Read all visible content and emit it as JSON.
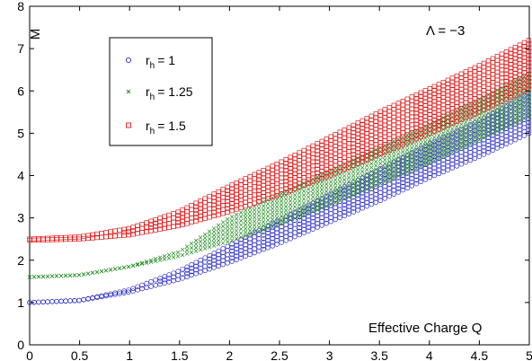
{
  "chart_data": {
    "type": "scatter",
    "title": "",
    "annotation": "Λ = −3",
    "xlabel": "Effective Charge Q",
    "ylabel": "M",
    "xlim": [
      0,
      5
    ],
    "ylim": [
      0,
      8
    ],
    "xticks": [
      "0",
      "0.5",
      "1",
      "1.5",
      "2",
      "2.5",
      "3",
      "3.5",
      "4",
      "4.5",
      "5"
    ],
    "yticks": [
      "0",
      "1",
      "2",
      "3",
      "4",
      "5",
      "6",
      "7",
      "8"
    ],
    "grid": false,
    "legend_position": "top-left",
    "series": [
      {
        "name_base": "r",
        "name_sub": "h",
        "name_value": "= 1",
        "marker": "circle",
        "color": "#2b2bc4",
        "lower_edge": {
          "x": [
            0,
            0.5,
            1,
            1.5,
            2,
            2.5,
            3,
            3.5,
            4,
            4.5,
            5
          ],
          "y": [
            1.0,
            1.05,
            1.25,
            1.55,
            1.95,
            2.4,
            2.9,
            3.4,
            3.95,
            4.45,
            5.0
          ]
        },
        "upper_edge": {
          "x": [
            0,
            0.5,
            1,
            1.5,
            2,
            2.5,
            3,
            3.5,
            4,
            4.5,
            5
          ],
          "y": [
            1.0,
            1.05,
            1.3,
            1.75,
            2.35,
            2.95,
            3.55,
            4.15,
            4.75,
            5.3,
            5.95
          ]
        }
      },
      {
        "name_base": "r",
        "name_sub": "h",
        "name_value": "= 1.25",
        "marker": "x",
        "color": "#1e8a1e",
        "lower_edge": {
          "x": [
            0,
            0.5,
            1,
            1.5,
            2,
            2.5,
            3,
            3.5,
            4,
            4.5,
            5
          ],
          "y": [
            1.6,
            1.65,
            1.85,
            2.1,
            2.45,
            2.85,
            3.3,
            3.8,
            4.3,
            4.85,
            5.4
          ]
        },
        "upper_edge": {
          "x": [
            0,
            0.5,
            1,
            1.5,
            2,
            2.5,
            3,
            3.5,
            4,
            4.5,
            5
          ],
          "y": [
            1.6,
            1.65,
            1.85,
            2.2,
            3.0,
            3.55,
            4.1,
            4.65,
            5.2,
            5.8,
            6.4
          ]
        }
      },
      {
        "name_base": "r",
        "name_sub": "h",
        "name_value": "= 1.5",
        "marker": "square",
        "color": "#e01a1a",
        "lower_edge": {
          "x": [
            0,
            0.5,
            1,
            1.5,
            2,
            2.5,
            3,
            3.5,
            4,
            4.5,
            5
          ],
          "y": [
            2.47,
            2.5,
            2.6,
            2.82,
            3.15,
            3.55,
            4.0,
            4.5,
            5.0,
            5.5,
            6.05
          ]
        },
        "upper_edge": {
          "x": [
            0,
            0.5,
            1,
            1.5,
            2,
            2.5,
            3,
            3.5,
            4,
            4.5,
            5
          ],
          "y": [
            2.5,
            2.55,
            2.75,
            3.15,
            3.75,
            4.3,
            4.9,
            5.5,
            6.05,
            6.6,
            7.2
          ]
        }
      }
    ]
  }
}
